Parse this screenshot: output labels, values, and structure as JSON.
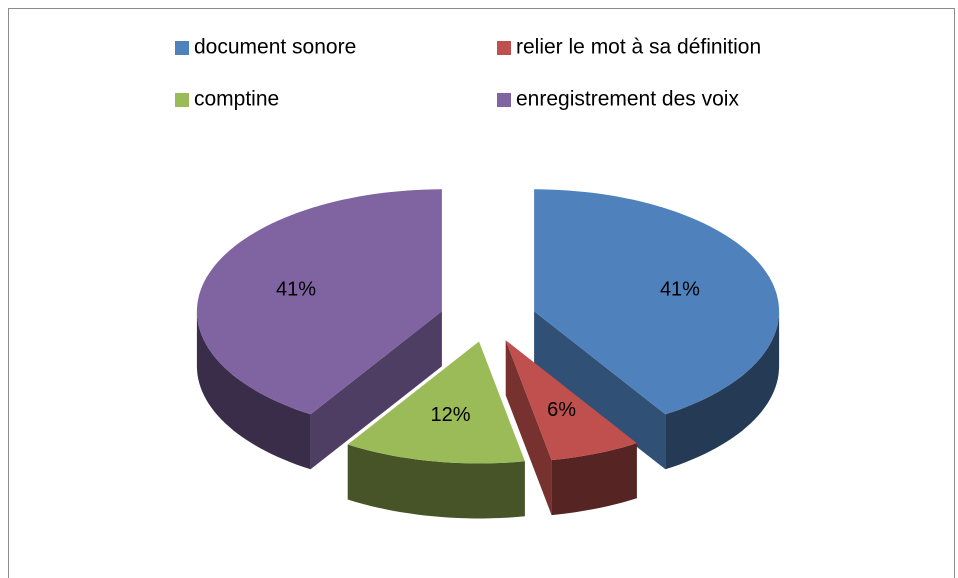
{
  "chart_data": {
    "type": "pie3d",
    "categories": [
      "document sonore",
      "relier le mot à sa définition",
      "comptine",
      "enregistrement des voix"
    ],
    "values": [
      41,
      6,
      12,
      41
    ],
    "value_labels": [
      "41%",
      "6%",
      "12%",
      "41%"
    ],
    "colors": [
      "#4f81bd",
      "#c0504d",
      "#9bbb59",
      "#8064a2"
    ],
    "legend": "top"
  }
}
